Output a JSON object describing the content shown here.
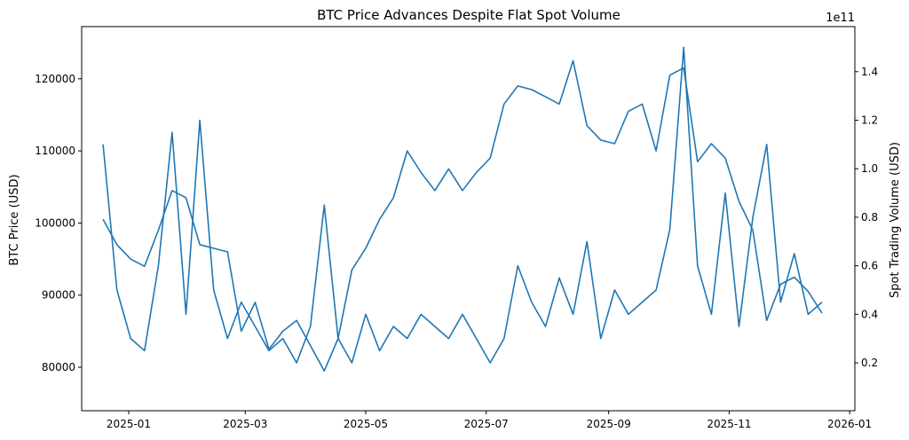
{
  "chart_data": {
    "type": "line",
    "title": "BTC Price Advances Despite Flat Spot Volume",
    "xlabel": "",
    "ylabel": "BTC Price (USD)",
    "y2label": "Spot Trading Volume (USD)",
    "y2_offset_text": "1e11",
    "line_color": "#1f77b4",
    "xticks": [
      "2025-01",
      "2025-03",
      "2025-05",
      "2025-07",
      "2025-09",
      "2025-11",
      "2026-01"
    ],
    "yticks": [
      80000,
      90000,
      100000,
      110000,
      120000
    ],
    "y2ticks": [
      "0.2",
      "0.4",
      "0.6",
      "0.8",
      "1.0",
      "1.2",
      "1.4"
    ],
    "ylim": [
      74000,
      127000
    ],
    "y2lim": [
      0.0,
      1.58
    ],
    "grid": false,
    "x": [
      "2024-12-19",
      "2024-12-26",
      "2025-01-02",
      "2025-01-09",
      "2025-01-16",
      "2025-01-23",
      "2025-01-30",
      "2025-02-06",
      "2025-02-13",
      "2025-02-20",
      "2025-02-27",
      "2025-03-06",
      "2025-03-13",
      "2025-03-20",
      "2025-03-27",
      "2025-04-03",
      "2025-04-10",
      "2025-04-17",
      "2025-04-24",
      "2025-05-01",
      "2025-05-08",
      "2025-05-15",
      "2025-05-22",
      "2025-05-29",
      "2025-06-05",
      "2025-06-12",
      "2025-06-19",
      "2025-06-26",
      "2025-07-03",
      "2025-07-10",
      "2025-07-17",
      "2025-07-24",
      "2025-07-31",
      "2025-08-07",
      "2025-08-14",
      "2025-08-21",
      "2025-08-28",
      "2025-09-04",
      "2025-09-11",
      "2025-09-18",
      "2025-09-25",
      "2025-10-02",
      "2025-10-09",
      "2025-10-16",
      "2025-10-23",
      "2025-10-30",
      "2025-11-06",
      "2025-11-13",
      "2025-11-20",
      "2025-11-27",
      "2025-12-04",
      "2025-12-11",
      "2025-12-18"
    ],
    "series": [
      {
        "name": "BTC Price (USD)",
        "axis": "left",
        "values": [
          100500,
          97000,
          95000,
          94000,
          99000,
          104500,
          103500,
          97000,
          96500,
          96000,
          85000,
          89000,
          82500,
          85000,
          86500,
          83000,
          79500,
          84000,
          93500,
          96500,
          100500,
          103500,
          110000,
          107000,
          104500,
          107500,
          104500,
          107000,
          109000,
          116500,
          119000,
          118500,
          117500,
          116500,
          122500,
          113500,
          111500,
          111000,
          115500,
          116500,
          110000,
          120500,
          121500,
          108500,
          111000,
          109000,
          103000,
          99000,
          86500,
          91500,
          92500,
          90500,
          87500
        ]
      },
      {
        "name": "Spot Trading Volume (USD, 1e11)",
        "axis": "right",
        "values": [
          1.1,
          0.5,
          0.3,
          0.25,
          0.6,
          1.15,
          0.4,
          1.2,
          0.5,
          0.3,
          0.45,
          0.35,
          0.25,
          0.3,
          0.2,
          0.35,
          0.85,
          0.3,
          0.2,
          0.4,
          0.25,
          0.35,
          0.3,
          0.4,
          0.35,
          0.3,
          0.4,
          0.3,
          0.2,
          0.3,
          0.6,
          0.45,
          0.35,
          0.55,
          0.4,
          0.7,
          0.3,
          0.5,
          0.4,
          0.45,
          0.5,
          0.75,
          1.5,
          0.6,
          0.4,
          0.9,
          0.35,
          0.8,
          1.1,
          0.45,
          0.65,
          0.4,
          0.45
        ]
      }
    ]
  }
}
